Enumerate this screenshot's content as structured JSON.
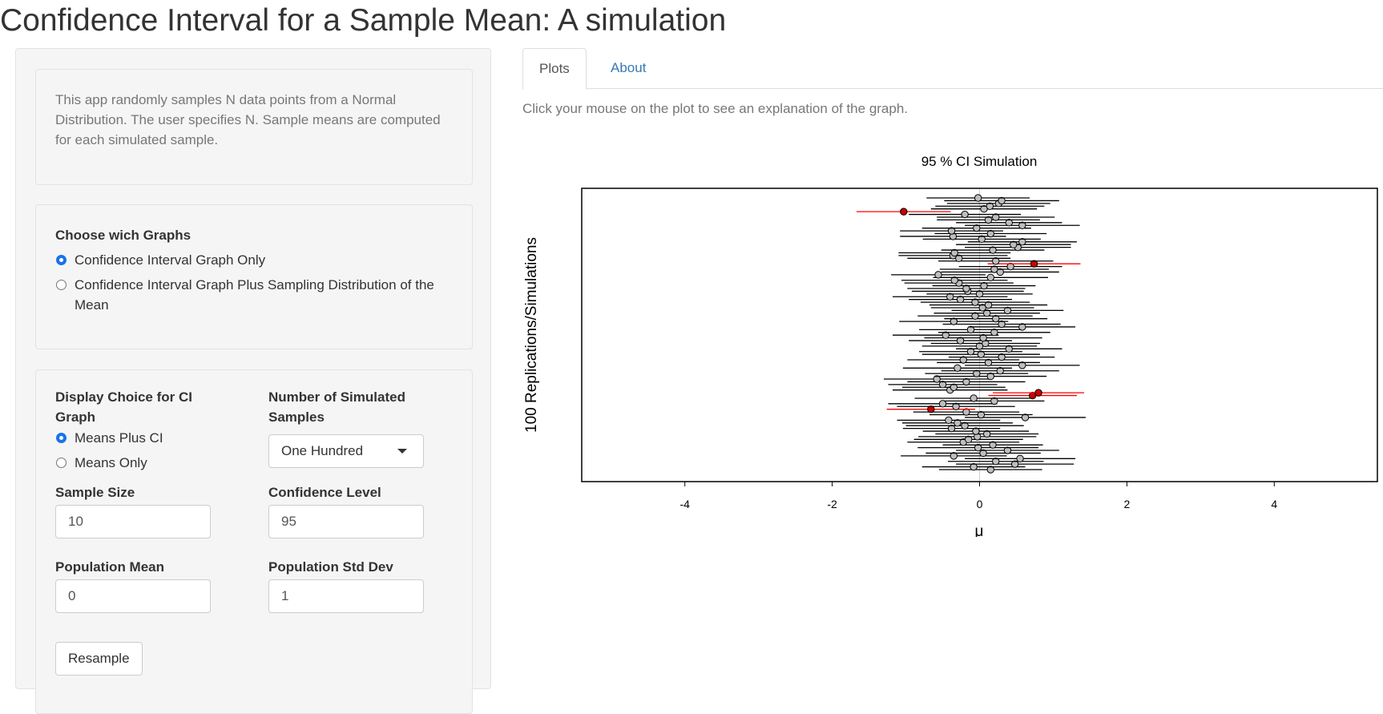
{
  "page": {
    "title": "Confidence Interval for a Sample Mean: A simulation"
  },
  "sidebar": {
    "intro": "This app randomly samples N data points from a Normal Distribution. The user specifies N. Sample means are computed for each simulated sample.",
    "graphs": {
      "label": "Choose wich Graphs",
      "options": [
        "Confidence Interval Graph Only",
        "Confidence Interval Graph Plus Sampling Distribution of the Mean"
      ],
      "selected": 0
    },
    "display": {
      "label": "Display Choice for CI Graph",
      "options": [
        "Means Plus CI",
        "Means Only"
      ],
      "selected": 0
    },
    "num_samples": {
      "label": "Number of Simulated Samples",
      "value": "One Hundred"
    },
    "sample_size": {
      "label": "Sample Size",
      "value": "10"
    },
    "confidence": {
      "label": "Confidence Level",
      "value": "95"
    },
    "pop_mean": {
      "label": "Population Mean",
      "value": "0"
    },
    "pop_sd": {
      "label": "Population Std Dev",
      "value": "1"
    },
    "resample_label": "Resample"
  },
  "tabs": [
    {
      "label": "Plots",
      "active": true
    },
    {
      "label": "About",
      "active": false
    }
  ],
  "hint": "Click your mouse on the plot to see an explanation of the graph.",
  "colors": {
    "miss": "#ff0000",
    "hit": "#000000",
    "point_fill": "#bebebe",
    "miss_fill": "#cc0000"
  },
  "chart_data": {
    "type": "scatter",
    "title": "95 % CI Simulation",
    "xlabel": "μ",
    "ylabel": "100 Replications/Simulations",
    "xlim": [
      -5.4,
      5.4
    ],
    "ylim": [
      0,
      100
    ],
    "xticks": [
      -4,
      -2,
      0,
      2,
      4
    ],
    "reference_line": 0,
    "series": [
      {
        "means": [
          0.15,
          -0.08,
          0.48,
          0.22,
          0.55,
          -0.35,
          0.05,
          0.38,
          -0.02,
          0.18,
          -0.22,
          -0.15,
          -0.03,
          0.1,
          -0.05,
          -0.38,
          -0.2,
          -0.3,
          -0.42,
          0.62,
          0.02,
          -0.18,
          -0.66,
          -0.32,
          -0.5,
          0.2,
          -0.08,
          0.72,
          0.8,
          -0.4,
          -0.35,
          -0.5,
          -0.18,
          -0.58,
          0.15,
          -0.04,
          0.28,
          -0.3,
          0.58,
          0.12,
          -0.22,
          0.3,
          0.02,
          -0.12,
          0.4,
          0.0,
          0.08,
          -0.26,
          0.05,
          -0.46,
          0.2,
          -0.12,
          0.58,
          0.3,
          -0.35,
          0.22,
          -0.06,
          0.1,
          0.38,
          0.04,
          0.12,
          -0.06,
          -0.26,
          -0.4,
          0.0,
          -0.16,
          -0.18,
          0.06,
          -0.28,
          -0.34,
          0.15,
          -0.56,
          0.28,
          0.2,
          0.42,
          0.74,
          0.22,
          -0.28,
          -0.36,
          -0.34,
          0.18,
          0.52,
          0.46,
          0.58,
          0.03,
          -0.36,
          0.15,
          -0.38,
          -0.04,
          0.58,
          0.4,
          0.12,
          0.22,
          -0.2,
          -1.03,
          0.06,
          0.14,
          0.26,
          0.3,
          -0.02
        ],
        "halfwidths": [
          0.7,
          0.7,
          0.8,
          0.65,
          0.75,
          0.72,
          0.78,
          0.7,
          0.82,
          0.68,
          0.76,
          0.74,
          0.8,
          0.7,
          0.72,
          0.66,
          0.8,
          0.75,
          0.7,
          0.82,
          0.7,
          0.72,
          0.6,
          0.8,
          0.74,
          0.68,
          0.8,
          0.6,
          0.62,
          0.78,
          0.7,
          0.74,
          0.8,
          0.72,
          0.76,
          0.7,
          0.8,
          0.74,
          0.78,
          0.7,
          0.76,
          0.72,
          0.8,
          0.7,
          0.72,
          0.78,
          0.74,
          0.7,
          0.8,
          0.72,
          0.76,
          0.7,
          0.72,
          0.8,
          0.74,
          0.7,
          0.78,
          0.72,
          0.76,
          0.7,
          0.8,
          0.74,
          0.7,
          0.78,
          0.72,
          0.76,
          0.8,
          0.7,
          0.74,
          0.72,
          0.78,
          0.64,
          0.8,
          0.74,
          0.7,
          0.63,
          0.78,
          0.7,
          0.74,
          0.76,
          0.7,
          0.72,
          0.78,
          0.74,
          0.8,
          0.72,
          0.76,
          0.7,
          0.74,
          0.78,
          0.72,
          0.7,
          0.8,
          0.76,
          0.64,
          0.72,
          0.74,
          0.7,
          0.78,
          0.7
        ]
      }
    ]
  }
}
